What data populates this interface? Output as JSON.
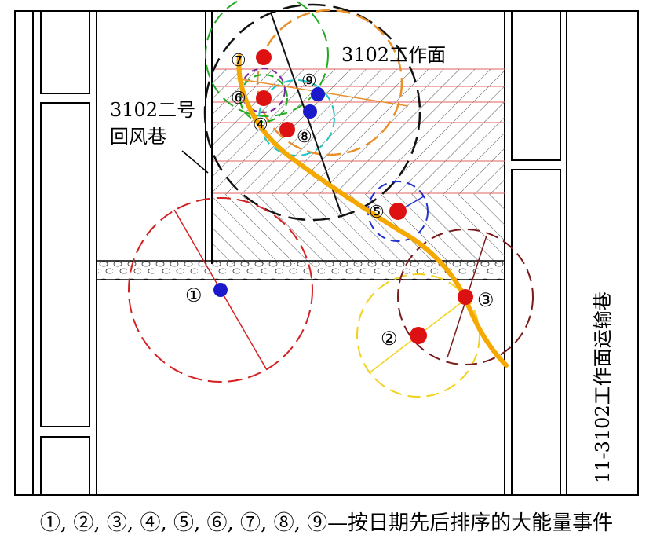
{
  "labels": {
    "working_face": "3102工作面",
    "return_airway_line1": "3102二号",
    "return_airway_line2": "回风巷",
    "transport_roadway": "11-3102工作面运输巷"
  },
  "events": [
    {
      "id": "1",
      "mark": "①",
      "color": "#1a1acc",
      "ring_color": "#d42020"
    },
    {
      "id": "2",
      "mark": "②",
      "color": "#dd1111",
      "ring_color": "#f2d21a"
    },
    {
      "id": "3",
      "mark": "③",
      "color": "#dd1111",
      "ring_color": "#7a1b1b"
    },
    {
      "id": "4",
      "mark": "④",
      "color": "",
      "ring_color": "#7a2aa0"
    },
    {
      "id": "5",
      "mark": "⑤",
      "color": "#dd1111",
      "ring_color": "#2233cc"
    },
    {
      "id": "6",
      "mark": "⑥",
      "color": "#dd1111",
      "ring_color": "#22aa22"
    },
    {
      "id": "7",
      "mark": "⑦",
      "color": "#dd1111",
      "ring_color": "#22aa22"
    },
    {
      "id": "8",
      "mark": "⑧",
      "color": "#dd1111",
      "ring_color": "#22c4c4"
    },
    {
      "id": "9",
      "mark": "⑨",
      "color": "#1a1acc",
      "ring_color": "#e07a1a"
    }
  ],
  "caption": "①, ②, ③, ④, ⑤, ⑥, ⑦, ⑧, ⑨—按日期先后排序的大能量事件",
  "colors": {
    "trend_line": "#f5a800",
    "hatch": "#555555",
    "red_stripe": "#e06060",
    "outer_dashed": "#111111",
    "orange_circle": "#e8902a"
  }
}
